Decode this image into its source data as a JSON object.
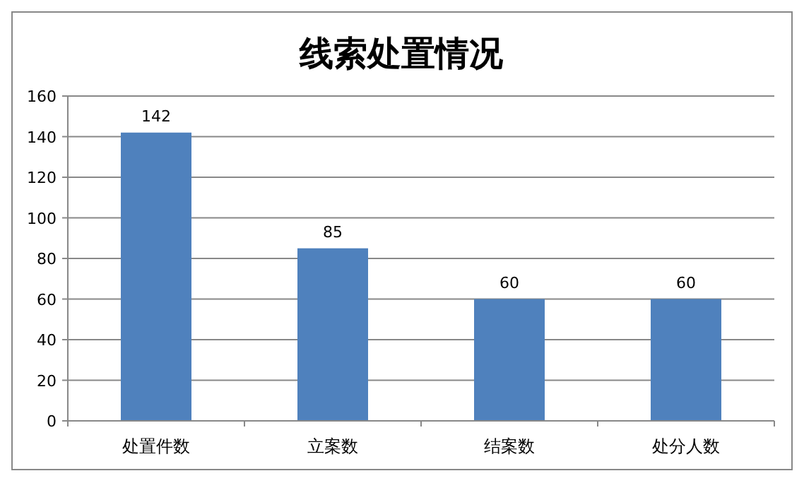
{
  "chart_data": {
    "type": "bar",
    "title": "线索处置情况",
    "categories": [
      "处置件数",
      "立案数",
      "结案数",
      "处分人数"
    ],
    "values": [
      142,
      85,
      60,
      60
    ],
    "color": "#4f81bd",
    "ylim": [
      0,
      160
    ],
    "yticks": [
      0,
      20,
      40,
      60,
      80,
      100,
      120,
      140,
      160
    ],
    "grid": "y",
    "data_labels": true
  }
}
